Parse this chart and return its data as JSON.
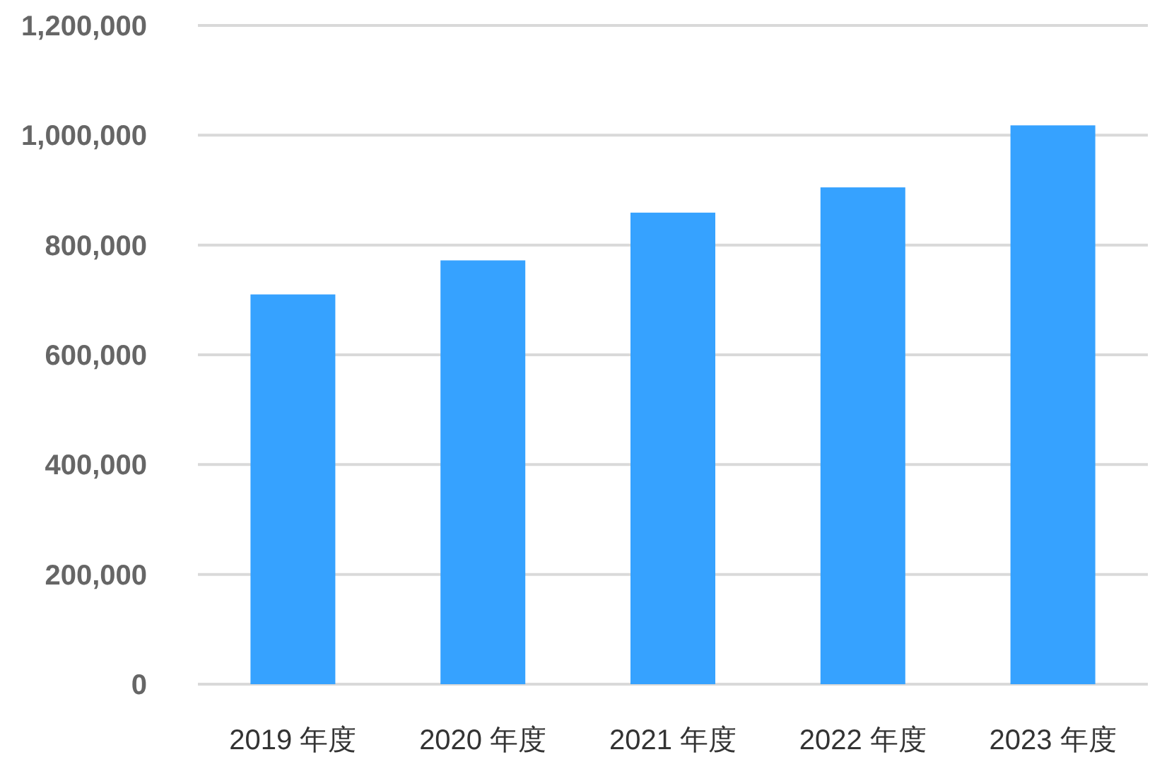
{
  "chart_data": {
    "type": "bar",
    "categories": [
      "2019 年度",
      "2020 年度",
      "2021 年度",
      "2022 年度",
      "2023 年度"
    ],
    "values": [
      710000,
      772000,
      859000,
      905000,
      1018000
    ],
    "color": "#36a2ff",
    "ylim": [
      0,
      1200000
    ],
    "yticks": [
      0,
      {
        "value": 200000,
        "label": "200,000"
      },
      {
        "value": 400000,
        "label": "400,000"
      },
      {
        "value": 600000,
        "label": "600,000"
      },
      {
        "value": 800000,
        "label": "800,000"
      },
      {
        "value": 1000000,
        "label": "1,000,000"
      },
      {
        "value": 1200000,
        "label": "1,200,000"
      }
    ],
    "grid": "y"
  }
}
